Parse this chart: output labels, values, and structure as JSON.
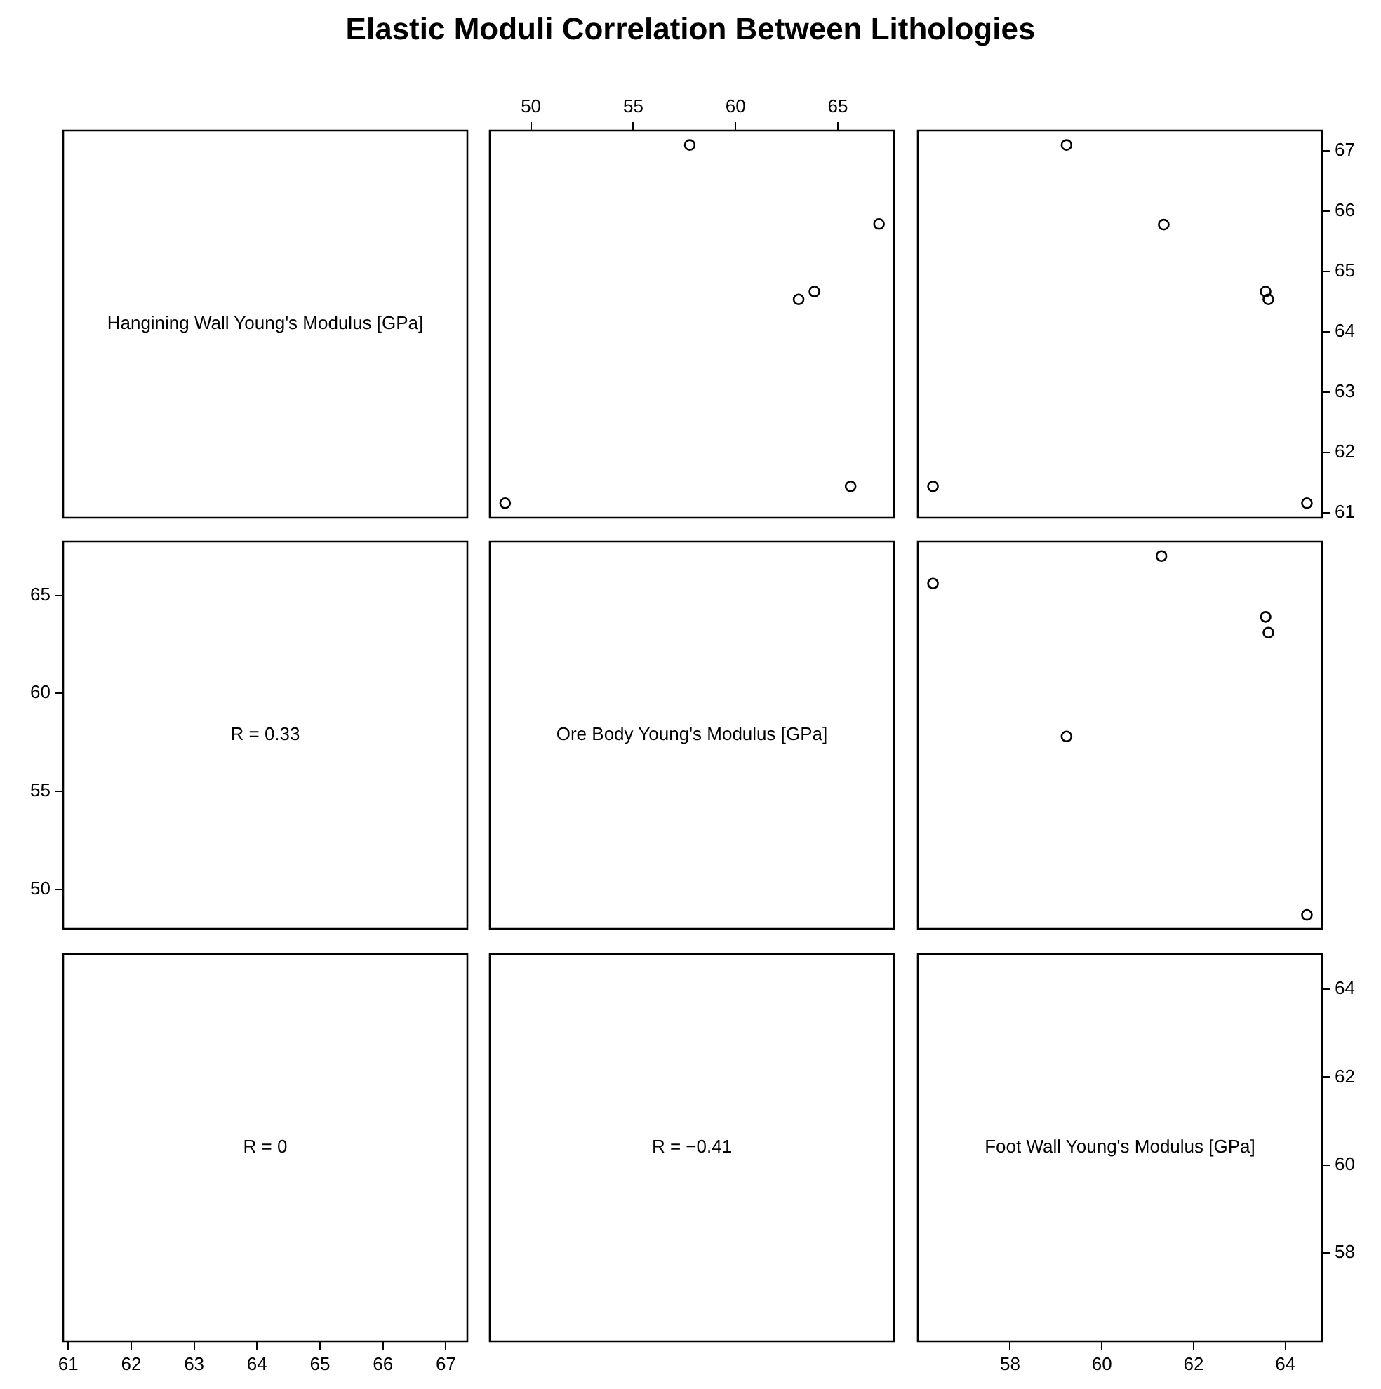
{
  "chart_data": [
    {
      "type": "other",
      "title": "Elastic Moduli Correlation Between Lithologies",
      "annotations": [
        "Hangining Wall Young's Modulus [GPa]"
      ]
    },
    {
      "type": "scatter",
      "x": [
        57.76,
        67.01,
        63.08,
        63.85,
        65.62,
        48.74
      ],
      "values": [
        67.1,
        65.79,
        64.54,
        64.67,
        61.44,
        61.16
      ],
      "color": "#000000",
      "marker": "circle",
      "xlim": [
        47.99,
        67.74
      ],
      "xticks": [
        50,
        55,
        60,
        65
      ],
      "ylim": [
        60.92,
        67.34
      ],
      "tick_labels": "x",
      "grid": false
    },
    {
      "type": "scatter",
      "x": [
        59.23,
        61.35,
        63.63,
        63.57,
        56.32,
        64.47
      ],
      "values": [
        67.1,
        65.78,
        64.54,
        64.67,
        61.44,
        61.16
      ],
      "color": "#000000",
      "marker": "circle",
      "xlim": [
        55.99,
        64.8
      ],
      "ylim": [
        60.92,
        67.34
      ],
      "yticks": [
        61,
        62,
        63,
        64,
        65,
        66,
        67
      ],
      "tick_labels": "y",
      "grid": false
    },
    {
      "type": "scatter",
      "annotations": [
        "R = 0.33"
      ],
      "xlim": [
        60.92,
        67.34
      ],
      "ylim": [
        47.99,
        67.74
      ],
      "yticks": [
        50,
        55,
        60,
        65
      ],
      "tick_labels": "y"
    },
    {
      "type": "other",
      "annotations": [
        "Ore Body Young's Modulus [GPa]"
      ]
    },
    {
      "type": "scatter",
      "x": [
        59.23,
        61.3,
        63.63,
        63.57,
        56.32,
        64.47
      ],
      "values": [
        57.8,
        67.0,
        63.1,
        63.9,
        65.6,
        48.7
      ],
      "color": "#000000",
      "marker": "circle",
      "xlim": [
        55.99,
        64.8
      ],
      "ylim": [
        47.99,
        67.74
      ],
      "tick_labels": false,
      "grid": false
    },
    {
      "type": "scatter",
      "annotations": [
        "R = 0"
      ],
      "xlim": [
        60.92,
        67.34
      ],
      "xticks": [
        61,
        62,
        63,
        64,
        65,
        66,
        67
      ],
      "ylim": [
        55.99,
        64.8
      ],
      "tick_labels": "x"
    },
    {
      "type": "other",
      "annotations": [
        "R = −0.41"
      ]
    },
    {
      "type": "scatter",
      "annotations": [
        "Foot Wall Young's Modulus [GPa]"
      ],
      "xlim": [
        55.99,
        64.8
      ],
      "xticks": [
        58,
        60,
        62,
        64
      ],
      "ylim": [
        55.99,
        64.8
      ],
      "yticks": [
        58,
        60,
        62,
        64
      ]
    }
  ]
}
